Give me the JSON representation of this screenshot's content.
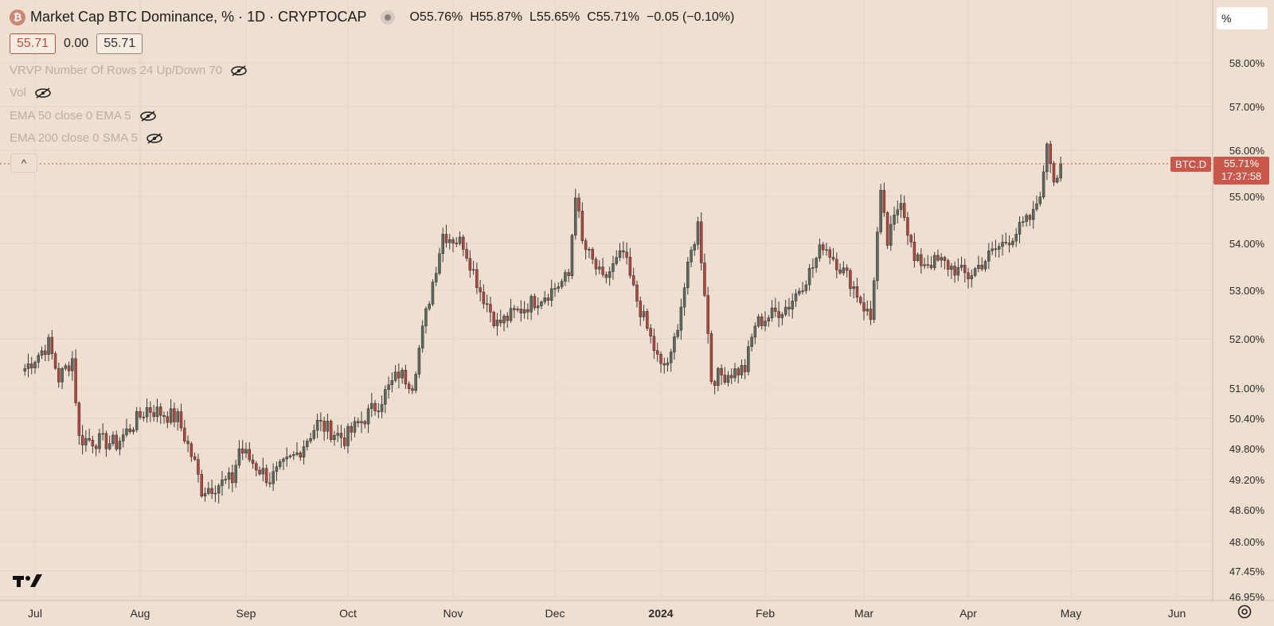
{
  "header": {
    "symbol_title": "Market Cap BTC Dominance, % · 1D · CRYPTOCAP",
    "logo_glyph": "₿",
    "ohlc": [
      {
        "k": "O",
        "v": "55.76%"
      },
      {
        "k": "H",
        "v": "55.87%"
      },
      {
        "k": "L",
        "v": "55.65%"
      },
      {
        "k": "C",
        "v": "55.71%"
      },
      {
        "k": "",
        "v": "−0.05 (−0.10%)"
      }
    ]
  },
  "price_row": {
    "bid": "55.71",
    "spread": "0.00",
    "ask": "55.71"
  },
  "indicators": [
    "VRVP Number Of Rows 24 Up/Down 70",
    "Vol",
    "EMA 50 close 0 EMA 5",
    "EMA 200 close 0 SMA 5"
  ],
  "collapse_glyph": "^",
  "price_axis": {
    "unit": "%",
    "ticker": "BTC.D",
    "last_price": "55.71%",
    "countdown": "17:37:58"
  },
  "colors": {
    "up": "#5d6b5f",
    "down": "#b8443a",
    "grid": "#e5d6c8",
    "price_line": "#c0503f"
  },
  "chart_data": {
    "type": "candlestick",
    "title": "Market Cap BTC Dominance, % · 1D · CRYPTOCAP",
    "ylim": [
      46.9,
      58.6
    ],
    "y_tick_labels": [
      "58.00%",
      "57.00%",
      "56.00%",
      "55.00%",
      "54.00%",
      "53.00%",
      "52.00%",
      "51.00%",
      "50.40%",
      "49.80%",
      "49.20%",
      "48.60%",
      "48.00%",
      "47.45%",
      "46.95%"
    ],
    "y_tick_values": [
      58.0,
      57.0,
      56.0,
      55.0,
      54.0,
      53.0,
      52.0,
      51.0,
      50.4,
      49.8,
      49.2,
      48.6,
      48.0,
      47.45,
      46.95
    ],
    "x_tick_labels": [
      "Jul",
      "Aug",
      "Sep",
      "Oct",
      "Nov",
      "Dec",
      "2024",
      "Feb",
      "Mar",
      "Apr",
      "May",
      "Jun"
    ],
    "x_tick_bold": [
      false,
      false,
      false,
      false,
      false,
      false,
      true,
      false,
      false,
      false,
      false,
      false
    ],
    "x_range": [
      "2023-06-28",
      "2024-06-28"
    ],
    "x_tick_dates": [
      "2023-07-01",
      "2023-08-01",
      "2023-09-01",
      "2023-10-01",
      "2023-11-01",
      "2023-12-01",
      "2024-01-01",
      "2024-02-01",
      "2024-03-01",
      "2024-04-01",
      "2024-05-01",
      "2024-06-01"
    ],
    "last_close": 55.71,
    "close_anchors": [
      [
        "2023-06-28",
        51.4
      ],
      [
        "2023-07-05",
        51.9
      ],
      [
        "2023-07-08",
        51.2
      ],
      [
        "2023-07-12",
        51.6
      ],
      [
        "2023-07-14",
        50.0
      ],
      [
        "2023-07-25",
        49.9
      ],
      [
        "2023-08-03",
        50.6
      ],
      [
        "2023-08-12",
        50.4
      ],
      [
        "2023-08-17",
        49.5
      ],
      [
        "2023-08-19",
        49.0
      ],
      [
        "2023-08-28",
        49.2
      ],
      [
        "2023-08-30",
        49.8
      ],
      [
        "2023-09-08",
        49.2
      ],
      [
        "2023-09-16",
        49.7
      ],
      [
        "2023-09-22",
        50.3
      ],
      [
        "2023-09-30",
        50.0
      ],
      [
        "2023-10-10",
        50.7
      ],
      [
        "2023-10-16",
        51.3
      ],
      [
        "2023-10-20",
        51.1
      ],
      [
        "2023-10-24",
        52.5
      ],
      [
        "2023-10-29",
        54.2
      ],
      [
        "2023-11-04",
        54.0
      ],
      [
        "2023-11-09",
        53.0
      ],
      [
        "2023-11-14",
        52.3
      ],
      [
        "2023-11-23",
        52.7
      ],
      [
        "2023-11-30",
        53.0
      ],
      [
        "2023-12-05",
        53.3
      ],
      [
        "2023-12-07",
        55.1
      ],
      [
        "2023-12-09",
        54.0
      ],
      [
        "2023-12-15",
        53.2
      ],
      [
        "2023-12-21",
        53.8
      ],
      [
        "2023-12-24",
        53.0
      ],
      [
        "2024-01-01",
        51.4
      ],
      [
        "2024-01-04",
        51.6
      ],
      [
        "2024-01-10",
        53.8
      ],
      [
        "2024-01-12",
        54.4
      ],
      [
        "2024-01-14",
        53.0
      ],
      [
        "2024-01-16",
        51.2
      ],
      [
        "2024-01-26",
        51.4
      ],
      [
        "2024-01-29",
        52.3
      ],
      [
        "2024-02-08",
        52.7
      ],
      [
        "2024-02-15",
        53.5
      ],
      [
        "2024-02-18",
        54.0
      ],
      [
        "2024-02-26",
        53.2
      ],
      [
        "2024-03-03",
        52.4
      ],
      [
        "2024-03-05",
        54.2
      ],
      [
        "2024-03-06",
        55.0
      ],
      [
        "2024-03-08",
        54.0
      ],
      [
        "2024-03-12",
        55.0
      ],
      [
        "2024-03-16",
        53.6
      ],
      [
        "2024-03-24",
        53.6
      ],
      [
        "2024-04-01",
        53.3
      ],
      [
        "2024-04-08",
        53.8
      ],
      [
        "2024-04-16",
        54.3
      ],
      [
        "2024-04-20",
        54.6
      ],
      [
        "2024-04-23",
        55.4
      ],
      [
        "2024-04-24",
        56.2
      ],
      [
        "2024-04-26",
        55.4
      ],
      [
        "2024-04-28",
        55.71
      ]
    ]
  }
}
